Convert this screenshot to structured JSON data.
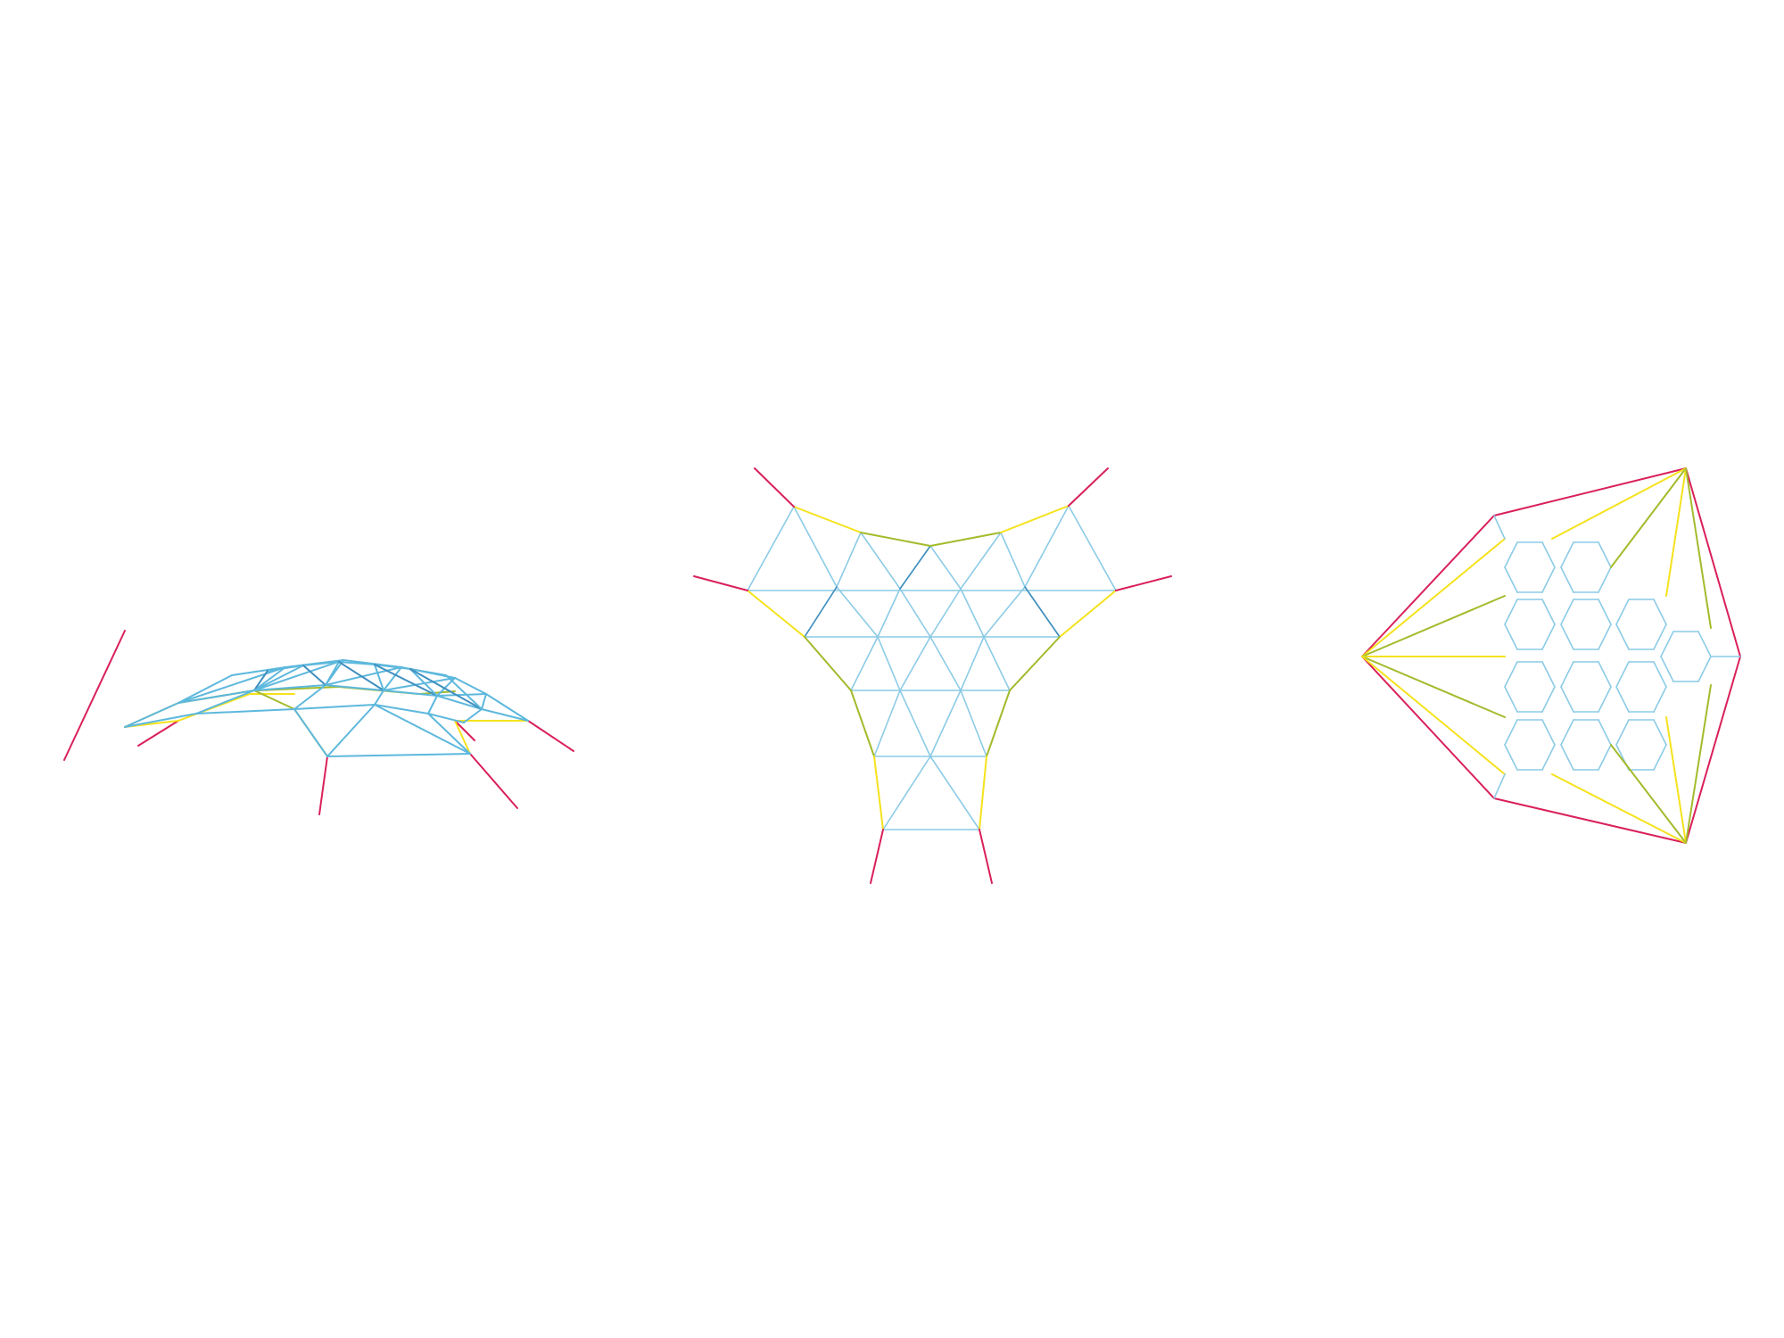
{
  "colors": {
    "background": "#ffffff",
    "anchor": "#d9205a",
    "yellow": "#f5e21c",
    "green": "#a3bb2c",
    "blue": "#5db8dd",
    "blue_dark": "#3f8fbf",
    "blue_light": "#8ccbe6"
  },
  "diagrams": [
    {
      "name": "perspective-view",
      "kind": "triangulated gridshell, perspective"
    },
    {
      "name": "plan-view-triangles",
      "kind": "triangulated gridshell, plan"
    },
    {
      "name": "plan-view-hexagons",
      "kind": "hexagonal gridshell, plan"
    }
  ]
}
